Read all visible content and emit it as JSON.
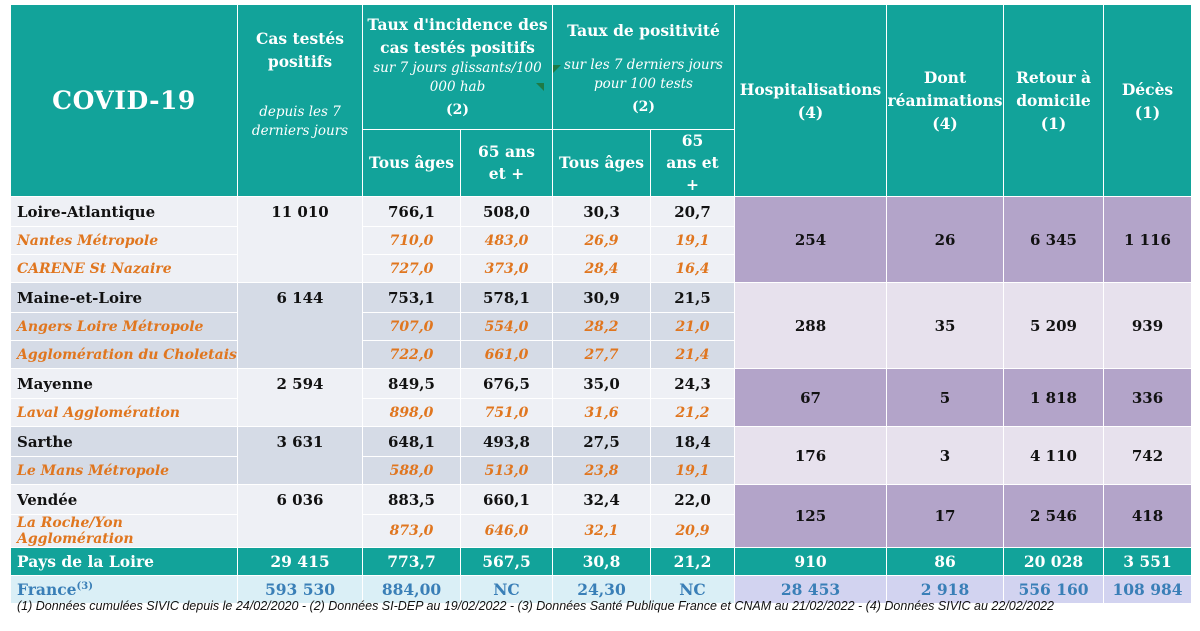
{
  "header": {
    "title": "COVID-19",
    "cas_testes": {
      "label": "Cas testés positifs",
      "note": "depuis les 7 derniers jours"
    },
    "incidence": {
      "label": "Taux d'incidence des cas testés positifs",
      "note": "sur 7 jours glissants/100 000 hab",
      "ref": "(2)"
    },
    "positivite": {
      "label": "Taux de positivité",
      "note": "sur les 7 derniers jours pour 100 tests",
      "ref": "(2)"
    },
    "hospitalisations": {
      "label": "Hospitalisations",
      "ref": "(4)"
    },
    "reanimations": {
      "label": "Dont réanimations",
      "ref": "(4)"
    },
    "retour": {
      "label": "Retour à domicile",
      "ref": "(1)"
    },
    "deces": {
      "label": "Décès",
      "ref": "(1)"
    },
    "tous_ages": "Tous âges",
    "seniors": "65 ans et +"
  },
  "departments": [
    {
      "name": "Loire-Atlantique",
      "cas": "11 010",
      "inc_all": "766,1",
      "inc_65": "508,0",
      "pos_all": "30,3",
      "pos_65": "20,7",
      "hosp": "254",
      "rea": "26",
      "retour": "6 345",
      "deces": "1 116",
      "subs": [
        {
          "name": "Nantes Métropole",
          "inc_all": "710,0",
          "inc_65": "483,0",
          "pos_all": "26,9",
          "pos_65": "19,1"
        },
        {
          "name": "CARENE St Nazaire",
          "inc_all": "727,0",
          "inc_65": "373,0",
          "pos_all": "28,4",
          "pos_65": "16,4"
        }
      ]
    },
    {
      "name": "Maine-et-Loire",
      "cas": "6 144",
      "inc_all": "753,1",
      "inc_65": "578,1",
      "pos_all": "30,9",
      "pos_65": "21,5",
      "hosp": "288",
      "rea": "35",
      "retour": "5 209",
      "deces": "939",
      "subs": [
        {
          "name": "Angers Loire Métropole",
          "inc_all": "707,0",
          "inc_65": "554,0",
          "pos_all": "28,2",
          "pos_65": "21,0"
        },
        {
          "name": "Agglomération du Choletais",
          "inc_all": "722,0",
          "inc_65": "661,0",
          "pos_all": "27,7",
          "pos_65": "21,4"
        }
      ]
    },
    {
      "name": "Mayenne",
      "cas": "2 594",
      "inc_all": "849,5",
      "inc_65": "676,5",
      "pos_all": "35,0",
      "pos_65": "24,3",
      "hosp": "67",
      "rea": "5",
      "retour": "1 818",
      "deces": "336",
      "subs": [
        {
          "name": "Laval Agglomération",
          "inc_all": "898,0",
          "inc_65": "751,0",
          "pos_all": "31,6",
          "pos_65": "21,2"
        }
      ]
    },
    {
      "name": "Sarthe",
      "cas": "3 631",
      "inc_all": "648,1",
      "inc_65": "493,8",
      "pos_all": "27,5",
      "pos_65": "18,4",
      "hosp": "176",
      "rea": "3",
      "retour": "4 110",
      "deces": "742",
      "subs": [
        {
          "name": "Le Mans Métropole",
          "inc_all": "588,0",
          "inc_65": "513,0",
          "pos_all": "23,8",
          "pos_65": "19,1"
        }
      ]
    },
    {
      "name": "Vendée",
      "cas": "6 036",
      "inc_all": "883,5",
      "inc_65": "660,1",
      "pos_all": "32,4",
      "pos_65": "22,0",
      "hosp": "125",
      "rea": "17",
      "retour": "2 546",
      "deces": "418",
      "subs": [
        {
          "name": "La Roche/Yon Agglomération",
          "inc_all": "873,0",
          "inc_65": "646,0",
          "pos_all": "32,1",
          "pos_65": "20,9"
        }
      ]
    }
  ],
  "region": {
    "name": "Pays de la Loire",
    "cas": "29 415",
    "inc_all": "773,7",
    "inc_65": "567,5",
    "pos_all": "30,8",
    "pos_65": "21,2",
    "hosp": "910",
    "rea": "86",
    "retour": "20 028",
    "deces": "3 551"
  },
  "france": {
    "name": "France",
    "ref": "(3)",
    "cas": "593 530",
    "inc_all": "884,00",
    "inc_65": "NC",
    "pos_all": "24,30",
    "pos_65": "NC",
    "hosp": "28 453",
    "rea": "2 918",
    "retour": "556 160",
    "deces": "108 984"
  },
  "footnote": "(1) Données cumulées SIVIC depuis le 24/02/2020 - (2) Données SI-DEP  au 19/02/2022 - (3) Données Santé Publique France et CNAM au 21/02/2022 - (4) Données SIVIC au 22/02/2022"
}
